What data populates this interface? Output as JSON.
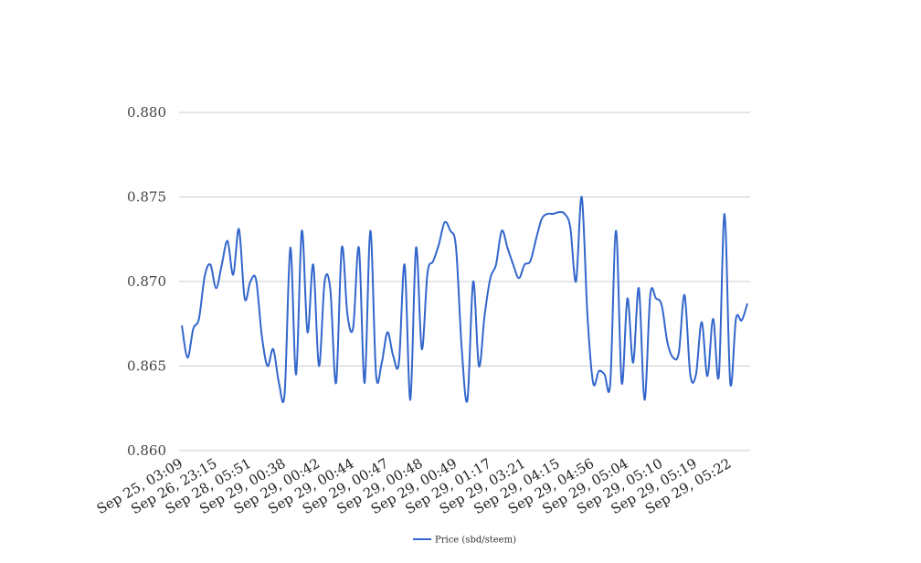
{
  "chart_data": {
    "type": "line",
    "title": "",
    "xlabel": "",
    "ylabel": "",
    "ylim": [
      0.86,
      0.88
    ],
    "yticks": [
      "0.860",
      "0.865",
      "0.870",
      "0.875",
      "0.880"
    ],
    "grid": true,
    "legend_position": "bottom",
    "x_tick_labels": [
      "Sep 25, 03:09",
      "Sep 26, 23:15",
      "Sep 28, 05:51",
      "Sep 29, 00:38",
      "Sep 29, 00:42",
      "Sep 29, 00:44",
      "Sep 29, 00:47",
      "Sep 29, 00:48",
      "Sep 29, 00:49",
      "Sep 29, 01:17",
      "Sep 29, 03:21",
      "Sep 29, 04:15",
      "Sep 29, 04:56",
      "Sep 29, 05:04",
      "Sep 29, 05:10",
      "Sep 29, 05:19",
      "Sep 29, 05:22"
    ],
    "series": [
      {
        "name": "Price (sbd/steem)",
        "color": "#3366cc",
        "values": [
          0.8674,
          0.8655,
          0.8672,
          0.8678,
          0.8703,
          0.871,
          0.8696,
          0.871,
          0.8724,
          0.8704,
          0.8731,
          0.869,
          0.87,
          0.8701,
          0.8668,
          0.865,
          0.866,
          0.864,
          0.8634,
          0.872,
          0.8645,
          0.873,
          0.867,
          0.871,
          0.865,
          0.87,
          0.8695,
          0.864,
          0.872,
          0.868,
          0.8673,
          0.872,
          0.864,
          0.873,
          0.8645,
          0.8652,
          0.867,
          0.8656,
          0.8652,
          0.871,
          0.863,
          0.872,
          0.866,
          0.8705,
          0.8712,
          0.8722,
          0.8735,
          0.873,
          0.872,
          0.866,
          0.863,
          0.87,
          0.865,
          0.868,
          0.8702,
          0.871,
          0.873,
          0.872,
          0.871,
          0.8702,
          0.871,
          0.8712,
          0.8725,
          0.8737,
          0.874,
          0.874,
          0.8741,
          0.874,
          0.8732,
          0.87,
          0.875,
          0.868,
          0.864,
          0.8647,
          0.8645,
          0.864,
          0.873,
          0.864,
          0.869,
          0.8652,
          0.8696,
          0.863,
          0.8692,
          0.869,
          0.8686,
          0.8664,
          0.8655,
          0.8658,
          0.8692,
          0.8645,
          0.8645,
          0.8676,
          0.8644,
          0.8678,
          0.8644,
          0.874,
          0.864,
          0.8678,
          0.8677,
          0.8687
        ]
      }
    ]
  }
}
